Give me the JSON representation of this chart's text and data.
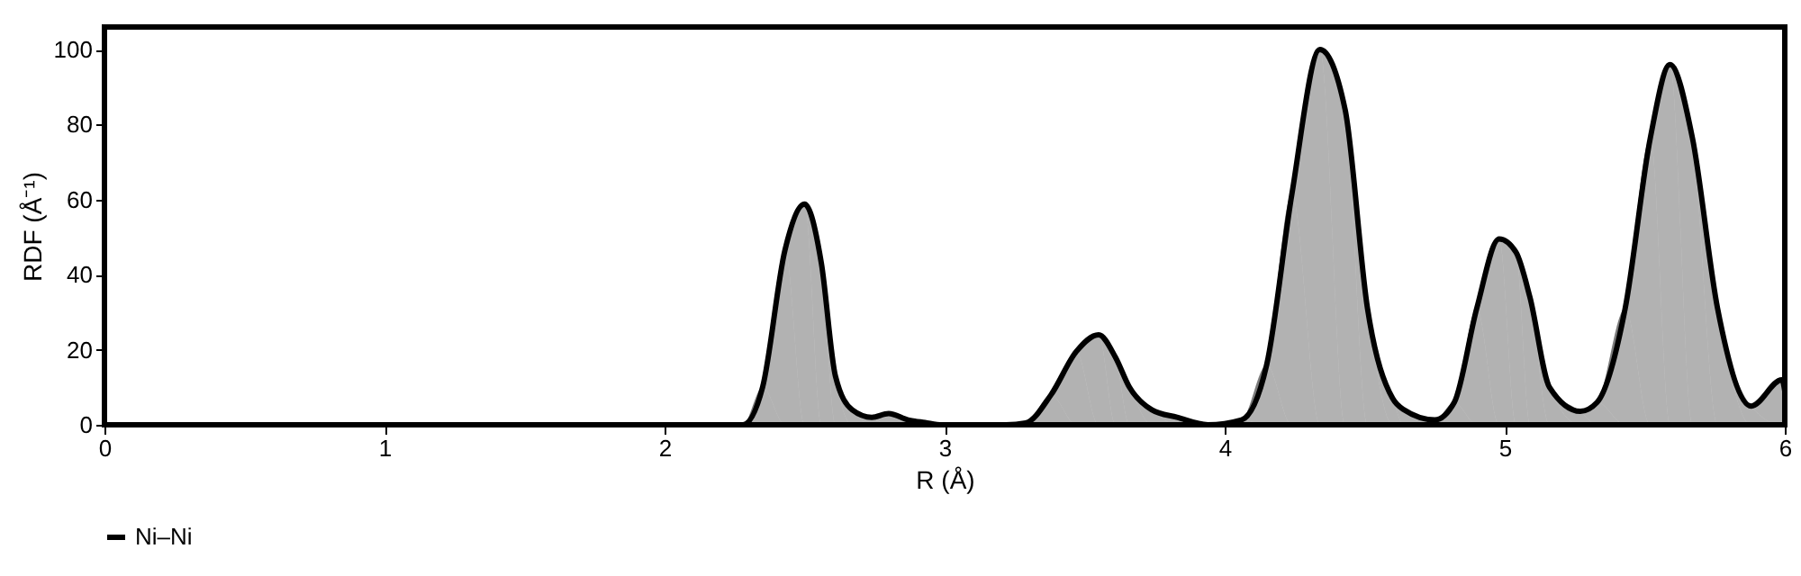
{
  "chart_data": {
    "type": "area",
    "xlabel": "R (Å)",
    "ylabel": "RDF (Å⁻¹)",
    "x": [
      0,
      1,
      2,
      2.28,
      2.35,
      2.43,
      2.5,
      2.56,
      2.61,
      2.67,
      2.74,
      2.8,
      2.87,
      2.93,
      2.99,
      3.1,
      3.22,
      3.29,
      3.38,
      3.47,
      3.55,
      3.61,
      3.66,
      3.74,
      3.83,
      3.94,
      4.06,
      4.15,
      4.24,
      4.34,
      4.43,
      4.51,
      4.6,
      4.64,
      4.75,
      4.82,
      4.9,
      4.98,
      5.04,
      5.09,
      5.16,
      5.27,
      5.33,
      5.43,
      5.52,
      5.59,
      5.67,
      5.76,
      5.88,
      5.99,
      6
    ],
    "series": [
      {
        "name": "Ni–Ni",
        "color": "#000000",
        "values": [
          0,
          0,
          0,
          0,
          10,
          46.6,
          58.8,
          43,
          13,
          4,
          2,
          3,
          1.3,
          0.6,
          0,
          0,
          0,
          0.5,
          8,
          19.5,
          24,
          18,
          10,
          4,
          2,
          0,
          1.3,
          16,
          61.5,
          100,
          84,
          31,
          7,
          4,
          1.3,
          6,
          31,
          49.5,
          46,
          34,
          10,
          3.6,
          6,
          31,
          76.5,
          96,
          76.5,
          31,
          5,
          12,
          9
        ]
      }
    ],
    "xlim": [
      0,
      6
    ],
    "ylim": [
      0,
      106
    ],
    "xticks": [
      0,
      1,
      2,
      3,
      4,
      5,
      6
    ],
    "yticks": [
      0,
      20,
      40,
      60,
      80,
      100
    ],
    "grid": false,
    "legend": "bottom"
  }
}
